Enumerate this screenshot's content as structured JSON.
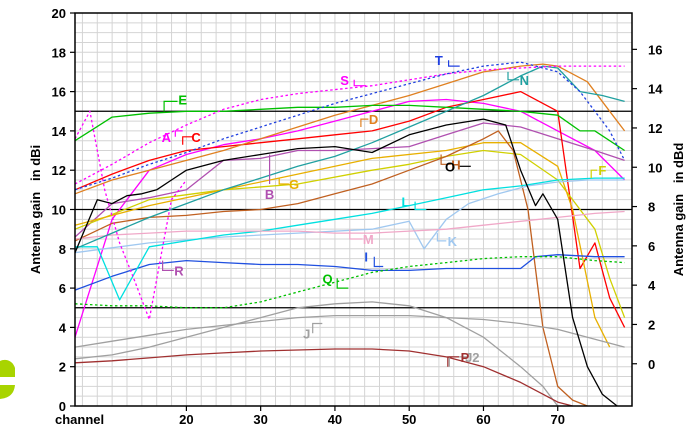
{
  "chart_data": {
    "type": "line",
    "xlabel": "channel",
    "ylabel_left": "Antenna gain   in dBi",
    "ylabel_right": "Antenna gain   in dBd",
    "xlim": [
      5,
      80
    ],
    "ylim": [
      0,
      20
    ],
    "y2lim": [
      -2.15,
      17.85
    ],
    "x_ticks": [
      20,
      30,
      40,
      50,
      60,
      70
    ],
    "y_ticks": [
      0,
      2,
      4,
      6,
      8,
      10,
      12,
      14,
      16,
      18,
      20
    ],
    "y2_ticks": [
      0,
      2,
      4,
      6,
      8,
      10,
      12,
      14,
      16
    ],
    "grid": true,
    "major_lines": [
      5,
      10,
      15
    ],
    "series": [
      {
        "name": "A",
        "color": "#ff00ff",
        "x": [
          5,
          10,
          15,
          20,
          25,
          30,
          35,
          40,
          45,
          50,
          55,
          60,
          65,
          70,
          75,
          79
        ],
        "y": [
          3.5,
          9.5,
          12.0,
          12.8,
          13.3,
          13.6,
          14.0,
          14.5,
          15.0,
          15.5,
          15.6,
          15.4,
          15.0,
          14.0,
          13.0,
          11.5
        ]
      },
      {
        "name": "B",
        "color": "#b050b0",
        "x": [
          5,
          10,
          15,
          20,
          25,
          30,
          35,
          40,
          45,
          50,
          55,
          60,
          65,
          70,
          75,
          79
        ],
        "y": [
          8.6,
          10.3,
          10.6,
          11.0,
          12.5,
          12.6,
          13.0,
          13.0,
          13.1,
          13.2,
          13.8,
          14.4,
          14.2,
          13.6,
          13.0,
          12.5
        ]
      },
      {
        "name": "C",
        "color": "#ff0000",
        "x": [
          5,
          10,
          15,
          20,
          25,
          30,
          35,
          40,
          45,
          50,
          55,
          60,
          65,
          70,
          73,
          75,
          77,
          79
        ],
        "y": [
          11.0,
          11.8,
          12.5,
          13.0,
          13.2,
          13.4,
          13.6,
          13.8,
          14.0,
          14.5,
          15.2,
          15.6,
          16.0,
          15.0,
          7.0,
          8.3,
          5.5,
          4.0
        ]
      },
      {
        "name": "D",
        "color": "#e08020",
        "x": [
          5,
          10,
          15,
          20,
          25,
          30,
          35,
          40,
          45,
          50,
          55,
          60,
          65,
          68,
          70,
          74,
          77,
          79
        ],
        "y": [
          10.8,
          11.5,
          12.0,
          12.5,
          13.0,
          13.6,
          14.2,
          14.8,
          15.3,
          15.8,
          16.4,
          17.0,
          17.3,
          17.4,
          17.3,
          16.5,
          15.0,
          14.0
        ]
      },
      {
        "name": "E",
        "color": "#00c000",
        "x": [
          5,
          10,
          15,
          20,
          25,
          30,
          35,
          40,
          45,
          50,
          55,
          60,
          65,
          70,
          73,
          75,
          79
        ],
        "y": [
          13.5,
          14.7,
          14.9,
          15.0,
          15.0,
          15.1,
          15.2,
          15.2,
          15.3,
          15.3,
          15.2,
          15.1,
          15.0,
          14.8,
          14.0,
          14.0,
          13.0
        ]
      },
      {
        "name": "F",
        "color": "#d0d000",
        "x": [
          5,
          15,
          25,
          35,
          45,
          50,
          55,
          60,
          65,
          70,
          75,
          77,
          79
        ],
        "y": [
          9.0,
          10.5,
          11.0,
          11.3,
          12.0,
          12.3,
          12.7,
          13.0,
          12.8,
          11.5,
          9.0,
          6.5,
          4.5
        ]
      },
      {
        "name": "G",
        "color": "#e8b000",
        "x": [
          5,
          15,
          25,
          35,
          45,
          55,
          60,
          65,
          70,
          72,
          75,
          77
        ],
        "y": [
          9.2,
          10.2,
          11.0,
          11.8,
          12.6,
          13.0,
          13.4,
          13.4,
          12.2,
          10.0,
          4.5,
          3.0
        ]
      },
      {
        "name": "H",
        "color": "#c06020",
        "x": [
          5,
          10,
          15,
          20,
          25,
          30,
          35,
          40,
          45,
          50,
          55,
          60,
          62,
          64,
          66,
          68,
          70,
          72,
          74
        ],
        "y": [
          8.4,
          9.3,
          9.6,
          9.7,
          9.9,
          10.0,
          10.3,
          10.8,
          11.3,
          12.0,
          12.7,
          13.6,
          14.0,
          13.0,
          10.0,
          4.0,
          1.0,
          0.3,
          0.0
        ]
      },
      {
        "name": "I",
        "color": "#2050e0",
        "x": [
          5,
          10,
          15,
          20,
          25,
          30,
          35,
          40,
          45,
          50,
          55,
          60,
          65,
          67,
          70,
          75,
          79
        ],
        "y": [
          5.9,
          6.6,
          7.2,
          7.4,
          7.3,
          7.2,
          7.2,
          7.1,
          6.9,
          6.9,
          7.0,
          7.0,
          7.0,
          7.6,
          7.7,
          7.6,
          7.6
        ]
      },
      {
        "name": "J",
        "color": "#a0a0a0",
        "x": [
          5,
          10,
          15,
          20,
          25,
          30,
          35,
          40,
          45,
          50,
          55,
          60,
          65,
          70,
          75,
          79
        ],
        "y": [
          3.0,
          3.3,
          3.6,
          3.9,
          4.1,
          4.3,
          4.5,
          4.6,
          4.6,
          4.6,
          4.5,
          4.4,
          4.2,
          3.9,
          3.4,
          3.0
        ]
      },
      {
        "name": "J2",
        "color": "#a0a0a0",
        "x": [
          5,
          10,
          15,
          20,
          25,
          30,
          35,
          40,
          45,
          50,
          55,
          60,
          65,
          68,
          70
        ],
        "y": [
          2.4,
          2.6,
          3.0,
          3.5,
          4.0,
          4.5,
          5.0,
          5.2,
          5.3,
          5.1,
          4.5,
          3.5,
          2.0,
          1.0,
          0.0
        ]
      },
      {
        "name": "K",
        "color": "#a0c8f0",
        "x": [
          5,
          15,
          25,
          35,
          45,
          50,
          52,
          55,
          58,
          62,
          66,
          70,
          74,
          79
        ],
        "y": [
          7.8,
          8.3,
          8.6,
          8.8,
          9.0,
          9.4,
          8.0,
          9.5,
          10.3,
          10.8,
          11.2,
          11.4,
          11.5,
          11.5
        ]
      },
      {
        "name": "L",
        "color": "#00e0e0",
        "x": [
          5,
          8,
          11,
          15,
          20,
          25,
          30,
          35,
          40,
          45,
          50,
          55,
          60,
          65,
          70,
          75,
          79
        ],
        "y": [
          8.1,
          8.1,
          5.4,
          8.1,
          8.4,
          8.7,
          8.9,
          9.2,
          9.5,
          9.8,
          10.2,
          10.6,
          11.0,
          11.2,
          11.5,
          11.6,
          11.6
        ]
      },
      {
        "name": "M",
        "color": "#f0a8c8",
        "x": [
          5,
          10,
          15,
          20,
          25,
          30,
          35,
          40,
          45,
          50,
          55,
          60,
          65,
          70,
          75,
          79
        ],
        "y": [
          8.5,
          8.7,
          8.8,
          8.9,
          8.9,
          8.9,
          8.9,
          8.8,
          8.8,
          8.9,
          9.0,
          9.2,
          9.4,
          9.6,
          9.8,
          9.9
        ]
      },
      {
        "name": "N",
        "color": "#20a0a0",
        "x": [
          5,
          10,
          15,
          20,
          25,
          30,
          35,
          40,
          45,
          50,
          55,
          60,
          65,
          68,
          70,
          73,
          76,
          79
        ],
        "y": [
          8.0,
          8.8,
          9.6,
          10.3,
          11.0,
          11.6,
          12.2,
          12.7,
          13.4,
          14.2,
          15.0,
          15.8,
          16.8,
          17.3,
          17.2,
          16.0,
          15.8,
          15.5
        ]
      },
      {
        "name": "O",
        "color": "#000000",
        "x": [
          5,
          8,
          10,
          12,
          14,
          16,
          18,
          20,
          25,
          30,
          35,
          40,
          45,
          50,
          55,
          60,
          63,
          65,
          67,
          68,
          70,
          72,
          74,
          76,
          78
        ],
        "y": [
          7.8,
          10.5,
          10.3,
          10.7,
          10.8,
          11.0,
          11.5,
          12.0,
          12.5,
          12.8,
          13.1,
          13.2,
          12.9,
          13.8,
          14.3,
          14.6,
          14.3,
          12.0,
          10.2,
          10.8,
          9.5,
          4.5,
          2.0,
          0.6,
          0.0
        ]
      },
      {
        "name": "P",
        "color": "#a03030",
        "x": [
          5,
          10,
          15,
          20,
          25,
          30,
          35,
          40,
          45,
          50,
          55,
          60,
          65,
          68,
          70,
          72
        ],
        "y": [
          2.2,
          2.3,
          2.45,
          2.6,
          2.7,
          2.8,
          2.85,
          2.9,
          2.9,
          2.8,
          2.5,
          2.0,
          1.2,
          0.6,
          0.2,
          0.0
        ]
      },
      {
        "name": "Q",
        "color": "#00c000",
        "dashed": true,
        "x": [
          5,
          10,
          15,
          20,
          25,
          30,
          35,
          40,
          45,
          50,
          55,
          60,
          65,
          70,
          75,
          79
        ],
        "y": [
          5.2,
          5.1,
          5.1,
          5.0,
          5.0,
          5.3,
          5.8,
          6.3,
          6.8,
          7.1,
          7.3,
          7.5,
          7.6,
          7.6,
          7.4,
          7.3
        ]
      },
      {
        "name": "R",
        "color": "#ff00ff",
        "dashed": true,
        "x": [
          5,
          7,
          9,
          11,
          13,
          15,
          17,
          18,
          20
        ],
        "y": [
          13.6,
          15.0,
          11.0,
          8.3,
          6.4,
          4.4,
          8.5,
          10.5,
          11.5
        ]
      },
      {
        "name": "S",
        "color": "#ff00ff",
        "dashed": true,
        "x": [
          5,
          10,
          15,
          20,
          25,
          30,
          35,
          40,
          45,
          50,
          55,
          60,
          65,
          70,
          75,
          79
        ],
        "y": [
          11.3,
          12.3,
          13.4,
          14.3,
          15.1,
          15.6,
          15.9,
          16.1,
          16.3,
          16.6,
          16.9,
          17.1,
          17.2,
          17.3,
          17.3,
          17.3
        ]
      },
      {
        "name": "T",
        "color": "#2040e0",
        "dashed": true,
        "x": [
          5,
          10,
          15,
          20,
          25,
          30,
          35,
          40,
          45,
          50,
          55,
          60,
          65,
          70,
          73,
          75,
          77,
          79
        ],
        "y": [
          11.0,
          11.6,
          12.3,
          12.9,
          13.6,
          14.2,
          14.8,
          15.4,
          15.9,
          16.4,
          16.9,
          17.3,
          17.5,
          17.0,
          16.0,
          15.0,
          14.0,
          12.5
        ]
      }
    ],
    "labels": [
      {
        "text": "A",
        "color": "#ff00ff",
        "x": 17.3,
        "y": 13.7,
        "lx": [
          18.5,
          19.5
        ],
        "ly": [
          13.7,
          14.0
        ]
      },
      {
        "text": "B",
        "color": "#b050b0",
        "x": 31.2,
        "y": 10.8,
        "lx": [
          31.2,
          31.2
        ],
        "ly": [
          11.3,
          12.8
        ]
      },
      {
        "text": "C",
        "color": "#ff0000",
        "x": 21.3,
        "y": 13.7,
        "lx": [
          19.5,
          20.8
        ],
        "ly": [
          13.3,
          13.7
        ]
      },
      {
        "text": "D",
        "color": "#e08020",
        "x": 45.2,
        "y": 14.6,
        "lx": [
          43.5,
          44.5
        ],
        "ly": [
          14.2,
          14.6
        ]
      },
      {
        "text": "E",
        "color": "#00c000",
        "x": 19.5,
        "y": 15.6,
        "lx": [
          17.0,
          18.8
        ],
        "ly": [
          15.0,
          15.5
        ]
      },
      {
        "text": "F",
        "color": "#d0d000",
        "x": 76.0,
        "y": 12.0,
        "lx": [
          74.5,
          75.3
        ],
        "ly": [
          11.6,
          12.0
        ]
      },
      {
        "text": "G",
        "color": "#e8b000",
        "x": 34.5,
        "y": 11.3,
        "lx": [
          32.5,
          33.8
        ],
        "ly": [
          11.6,
          11.3
        ]
      },
      {
        "text": "H",
        "color": "#c06020",
        "x": 56.3,
        "y": 12.3,
        "lx": [
          54.3,
          55.6
        ],
        "ly": [
          12.8,
          12.3
        ]
      },
      {
        "text": "I",
        "color": "#2050e0",
        "x": 44.2,
        "y": 7.6,
        "lx": [
          45.3,
          46.5
        ],
        "ly": [
          7.6,
          7.1
        ]
      },
      {
        "text": "J",
        "color": "#a0a0a0",
        "x": 36.2,
        "y": 3.7,
        "lx": [
          37.0,
          38.3
        ],
        "ly": [
          3.7,
          4.2
        ]
      },
      {
        "text": "J2",
        "color": "#a0a0a0",
        "x": 58.5,
        "y": 2.5,
        "lx": [
          55.4,
          57.8
        ],
        "ly": [
          2.0,
          2.5
        ]
      },
      {
        "text": "K",
        "color": "#a0c8f0",
        "x": 55.8,
        "y": 8.4,
        "lx": [
          53.8,
          55.0
        ],
        "ly": [
          8.8,
          8.4
        ]
      },
      {
        "text": "L",
        "color": "#00e0e0",
        "x": 49.5,
        "y": 10.4,
        "lx": [
          50.8,
          52.3
        ],
        "ly": [
          10.4,
          10.0
        ]
      },
      {
        "text": "M",
        "color": "#f0a8c8",
        "x": 44.5,
        "y": 8.5,
        "lx": [
          42.0,
          43.7
        ],
        "ly": [
          9.0,
          8.5
        ]
      },
      {
        "text": "N",
        "color": "#20a0a0",
        "x": 65.5,
        "y": 16.6,
        "lx": [
          63.3,
          64.8
        ],
        "ly": [
          17.0,
          16.6
        ]
      },
      {
        "text": "O",
        "color": "#000000",
        "x": 55.5,
        "y": 12.2,
        "lx": [
          56.8,
          58.3
        ],
        "ly": [
          12.2,
          12.2
        ]
      },
      {
        "text": "P",
        "color": "#a03030",
        "x": 57.5,
        "y": 2.5,
        "lx": [
          55.2,
          56.7
        ],
        "ly": [
          2.0,
          2.5
        ]
      },
      {
        "text": "Q",
        "color": "#00c000",
        "x": 39.0,
        "y": 6.5,
        "lx": [
          40.3,
          41.8
        ],
        "ly": [
          6.5,
          6.0
        ]
      },
      {
        "text": "R",
        "color": "#b050b0",
        "x": 19.0,
        "y": 6.9,
        "lx": [
          16.8,
          18.3
        ],
        "ly": [
          7.4,
          6.9
        ]
      },
      {
        "text": "S",
        "color": "#ff00ff",
        "x": 41.3,
        "y": 16.6,
        "lx": [
          42.6,
          44.2
        ],
        "ly": [
          16.6,
          16.3
        ]
      },
      {
        "text": "T",
        "color": "#2040e0",
        "x": 54.0,
        "y": 17.6,
        "lx": [
          55.3,
          56.8
        ],
        "ly": [
          17.6,
          17.3
        ]
      }
    ]
  }
}
